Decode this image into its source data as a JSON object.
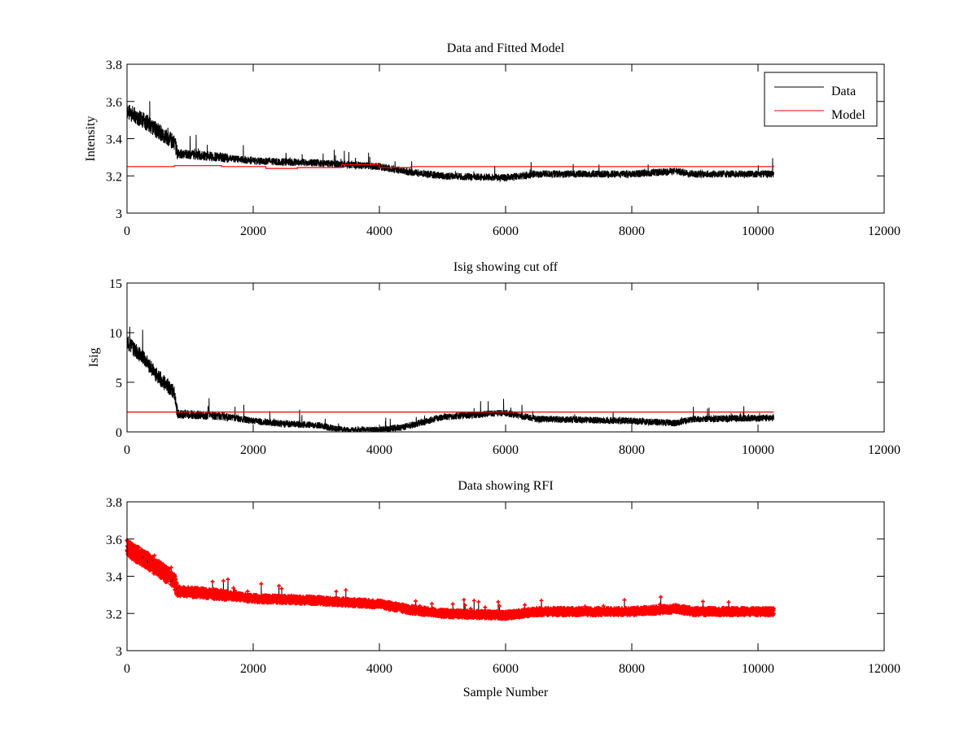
{
  "chart_data": [
    {
      "type": "line",
      "title": "Data and Fitted Model",
      "xlabel": "",
      "ylabel": "Intensity",
      "xlim": [
        0,
        12000
      ],
      "ylim": [
        3,
        3.8
      ],
      "xticks": [
        "0",
        "2000",
        "4000",
        "6000",
        "8000",
        "10000",
        "12000"
      ],
      "yticks": [
        "3",
        "3.2",
        "3.4",
        "3.6",
        "3.8"
      ],
      "legend": {
        "position": "top-right",
        "entries": [
          "Data",
          "Model"
        ]
      },
      "series": [
        {
          "name": "Data",
          "color": "#000000",
          "x": [
            0,
            250,
            500,
            750,
            800,
            1500,
            2000,
            3000,
            3500,
            4000,
            4500,
            5000,
            6000,
            6500,
            8000,
            8700,
            9000,
            10250
          ],
          "y": [
            3.55,
            3.5,
            3.44,
            3.38,
            3.32,
            3.3,
            3.28,
            3.27,
            3.26,
            3.25,
            3.22,
            3.2,
            3.19,
            3.21,
            3.21,
            3.225,
            3.21,
            3.21
          ],
          "noise": 0.02
        },
        {
          "name": "Model",
          "color": "#ff0000",
          "x": [
            0,
            750,
            1500,
            2200,
            2700,
            3400,
            4000,
            4500,
            10250
          ],
          "y": [
            3.25,
            3.255,
            3.25,
            3.24,
            3.245,
            3.26,
            3.245,
            3.25,
            3.255
          ]
        }
      ]
    },
    {
      "type": "line",
      "title": "Isig showing cut off",
      "xlabel": "",
      "ylabel": "Isig",
      "xlim": [
        0,
        12000
      ],
      "ylim": [
        0,
        15
      ],
      "xticks": [
        "0",
        "2000",
        "4000",
        "6000",
        "8000",
        "10000",
        "12000"
      ],
      "yticks": [
        "0",
        "5",
        "10",
        "15"
      ],
      "series": [
        {
          "name": "Isig",
          "color": "#000000",
          "x": [
            0,
            250,
            500,
            750,
            800,
            1500,
            2000,
            2500,
            3000,
            3400,
            4000,
            4400,
            5000,
            6000,
            6500,
            8000,
            8700,
            9000,
            10250
          ],
          "y": [
            9.0,
            7.5,
            5.5,
            4.0,
            1.8,
            1.6,
            1.1,
            0.8,
            0.7,
            0.2,
            0.2,
            0.5,
            1.5,
            1.9,
            1.3,
            1.1,
            0.9,
            1.3,
            1.4
          ],
          "noise": 0.35
        },
        {
          "name": "Cut off",
          "color": "#ff0000",
          "x": [
            0,
            10250
          ],
          "y": [
            2.0,
            2.0
          ]
        }
      ]
    },
    {
      "type": "scatter",
      "title": "Data showing RFI",
      "xlabel": "Sample Number",
      "ylabel": "",
      "xlim": [
        0,
        12000
      ],
      "ylim": [
        3,
        3.8
      ],
      "xticks": [
        "0",
        "2000",
        "4000",
        "6000",
        "8000",
        "10000",
        "12000"
      ],
      "yticks": [
        "3",
        "3.2",
        "3.4",
        "3.6",
        "3.8"
      ],
      "series": [
        {
          "name": "RFI",
          "color": "#ff0000",
          "marker": "+",
          "x": [
            0,
            250,
            500,
            750,
            800,
            1500,
            2000,
            3000,
            3500,
            4000,
            4500,
            5000,
            6000,
            6500,
            8000,
            8700,
            9000,
            10250
          ],
          "y": [
            3.55,
            3.5,
            3.44,
            3.38,
            3.32,
            3.3,
            3.28,
            3.27,
            3.26,
            3.25,
            3.22,
            3.2,
            3.19,
            3.21,
            3.21,
            3.225,
            3.21,
            3.21
          ],
          "noise": 0.02
        }
      ]
    }
  ]
}
